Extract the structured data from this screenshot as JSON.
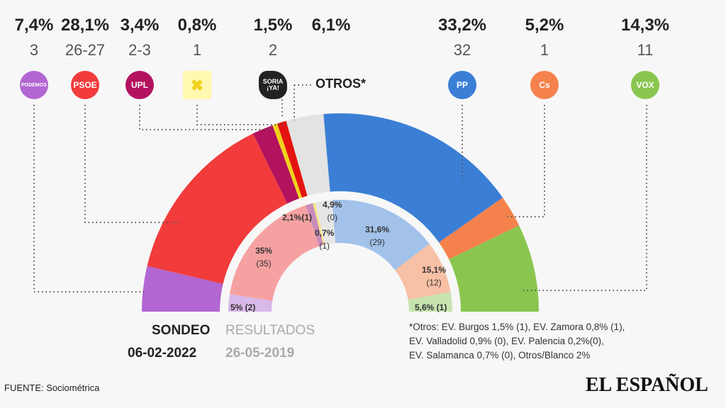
{
  "chart_data": {
    "type": "hemicycle",
    "outer_ring": {
      "label": "SONDEO",
      "date": "06-02-2022",
      "parties": [
        {
          "party": "PODEMOS",
          "pct_label": "7,4%",
          "value": 7.4,
          "seats": "3",
          "color": "#b266d1"
        },
        {
          "party": "PSOE",
          "pct_label": "28,1%",
          "value": 28.1,
          "seats": "26-27",
          "color": "#f23b3b"
        },
        {
          "party": "UPL",
          "pct_label": "3,4%",
          "value": 3.4,
          "seats": "2-3",
          "color": "#b3125f"
        },
        {
          "party": "XAV",
          "pct_label": "0,8%",
          "value": 0.8,
          "seats": "1",
          "color": "#f2d21b"
        },
        {
          "party": "SORIA ¡YA!",
          "pct_label": "1,5%",
          "value": 1.5,
          "seats": "2",
          "color": "#e3140f"
        },
        {
          "party": "OTROS*",
          "pct_label": "6,1%",
          "value": 6.1,
          "seats": "",
          "color": "#e3e3e3"
        },
        {
          "party": "PP",
          "pct_label": "33,2%",
          "value": 33.2,
          "seats": "32",
          "color": "#3a7fd5"
        },
        {
          "party": "Cs",
          "pct_label": "5,2%",
          "value": 5.2,
          "seats": "1",
          "color": "#f5824d"
        },
        {
          "party": "VOX",
          "pct_label": "14,3%",
          "value": 14.3,
          "seats": "11",
          "color": "#8ac64f"
        }
      ]
    },
    "inner_ring": {
      "label": "RESULTADOS",
      "date": "26-05-2019",
      "parties": [
        {
          "party": "PODEMOS",
          "value": 5,
          "text": "5% (2)",
          "color": "#d9b8ea"
        },
        {
          "party": "PSOE",
          "value": 35,
          "text": "35%",
          "seats": "(35)",
          "color": "#f6a1a1"
        },
        {
          "party": "UPL",
          "value": 2.1,
          "text": "2,1%(1)",
          "color": "#c98cb9"
        },
        {
          "party": "XAV",
          "value": 0.7,
          "text": "0,7%",
          "seats": "(1)",
          "color": "#f5e98a"
        },
        {
          "party": "OTROS",
          "value": 4.9,
          "text": "4,9%",
          "seats": "(0)",
          "color": "#e6e6e6"
        },
        {
          "party": "PP",
          "value": 31.6,
          "text": "31,6%",
          "seats": "(29)",
          "color": "#a2c2ea"
        },
        {
          "party": "Cs",
          "value": 15.1,
          "text": "15,1%",
          "seats": "(12)",
          "color": "#f8c0a5"
        },
        {
          "party": "VOX",
          "value": 5.6,
          "text": "5,6% (1)",
          "color": "#c7e3ae"
        }
      ]
    }
  },
  "otros_label": "OTROS*",
  "legend": {
    "sondeo": "SONDEO",
    "sondeo_date": "06-02-2022",
    "resultados": "RESULTADOS",
    "resultados_date": "26-05-2019"
  },
  "note": [
    "*Otros: EV. Burgos 1,5% (1), EV. Zamora 0,8% (1),",
    "EV. Valladolid 0,9% (0), EV. Palencia 0,2%(0),",
    "EV. Salamanca 0,7% (0),  Otros/Blanco 2%"
  ],
  "source": "FUENTE: Sociométrica",
  "brand": "EL ESPAÑOL"
}
